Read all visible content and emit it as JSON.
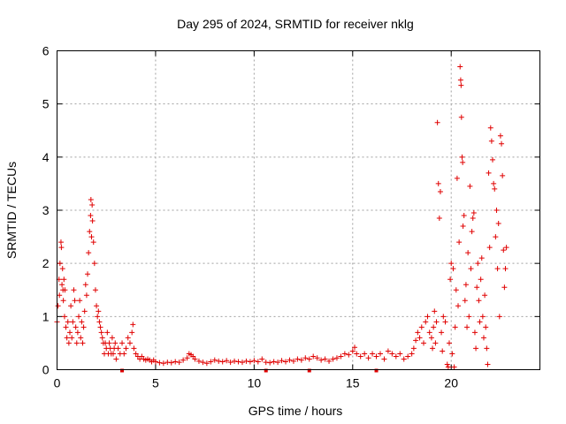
{
  "chart_data": {
    "type": "scatter",
    "title": "Day 295 of 2024, SRMTID for receiver nklg",
    "xlabel": "GPS time / hours",
    "ylabel": "SRMTID / TECUs",
    "xlim": [
      0,
      24.5
    ],
    "ylim": [
      0,
      6
    ],
    "xticks": [
      0,
      5,
      10,
      15,
      20
    ],
    "yticks": [
      0,
      1,
      2,
      3,
      4,
      5,
      6
    ],
    "grid": true,
    "marker": "+",
    "series": [
      {
        "name": "SRMTID",
        "color": "#e00000",
        "points": [
          [
            0.0,
            0.9
          ],
          [
            0.05,
            1.2
          ],
          [
            0.1,
            1.7
          ],
          [
            0.12,
            1.4
          ],
          [
            0.15,
            2.0
          ],
          [
            0.2,
            2.4
          ],
          [
            0.22,
            2.3
          ],
          [
            0.25,
            1.6
          ],
          [
            0.28,
            1.9
          ],
          [
            0.3,
            1.5
          ],
          [
            0.32,
            1.3
          ],
          [
            0.35,
            1.7
          ],
          [
            0.38,
            1.0
          ],
          [
            0.4,
            1.5
          ],
          [
            0.45,
            0.8
          ],
          [
            0.5,
            0.6
          ],
          [
            0.55,
            0.9
          ],
          [
            0.6,
            0.5
          ],
          [
            0.65,
            0.7
          ],
          [
            0.7,
            1.2
          ],
          [
            0.75,
            0.6
          ],
          [
            0.8,
            0.9
          ],
          [
            0.85,
            1.5
          ],
          [
            0.9,
            1.3
          ],
          [
            0.95,
            0.8
          ],
          [
            1.0,
            0.5
          ],
          [
            1.05,
            0.7
          ],
          [
            1.1,
            1.0
          ],
          [
            1.15,
            1.3
          ],
          [
            1.2,
            0.6
          ],
          [
            1.25,
            0.9
          ],
          [
            1.3,
            0.5
          ],
          [
            1.35,
            0.8
          ],
          [
            1.4,
            1.1
          ],
          [
            1.45,
            1.6
          ],
          [
            1.5,
            1.4
          ],
          [
            1.55,
            1.8
          ],
          [
            1.6,
            2.2
          ],
          [
            1.65,
            2.6
          ],
          [
            1.7,
            2.9
          ],
          [
            1.72,
            3.2
          ],
          [
            1.75,
            2.5
          ],
          [
            1.78,
            3.1
          ],
          [
            1.8,
            2.8
          ],
          [
            1.85,
            2.4
          ],
          [
            1.9,
            2.0
          ],
          [
            1.95,
            1.5
          ],
          [
            2.0,
            1.2
          ],
          [
            2.05,
            1.0
          ],
          [
            2.1,
            1.1
          ],
          [
            2.15,
            0.9
          ],
          [
            2.2,
            0.8
          ],
          [
            2.25,
            0.7
          ],
          [
            2.3,
            0.6
          ],
          [
            2.35,
            0.5
          ],
          [
            2.4,
            0.3
          ],
          [
            2.45,
            0.5
          ],
          [
            2.5,
            0.4
          ],
          [
            2.55,
            0.7
          ],
          [
            2.6,
            0.3
          ],
          [
            2.65,
            0.5
          ],
          [
            2.7,
            0.4
          ],
          [
            2.75,
            0.3
          ],
          [
            2.8,
            0.6
          ],
          [
            2.85,
            0.3
          ],
          [
            2.9,
            0.4
          ],
          [
            2.95,
            0.5
          ],
          [
            3.0,
            0.2
          ],
          [
            3.1,
            0.4
          ],
          [
            3.2,
            0.3
          ],
          [
            3.3,
            0.5
          ],
          [
            3.4,
            0.3
          ],
          [
            3.5,
            0.4
          ],
          [
            3.6,
            0.6
          ],
          [
            3.7,
            0.5
          ],
          [
            3.8,
            0.7
          ],
          [
            3.85,
            0.85
          ],
          [
            3.9,
            0.4
          ],
          [
            4.0,
            0.3
          ],
          [
            4.1,
            0.25
          ],
          [
            4.2,
            0.2
          ],
          [
            4.3,
            0.25
          ],
          [
            4.4,
            0.2
          ],
          [
            4.5,
            0.18
          ],
          [
            4.6,
            0.2
          ],
          [
            4.7,
            0.18
          ],
          [
            4.8,
            0.15
          ],
          [
            4.9,
            0.18
          ],
          [
            5.0,
            0.15
          ],
          [
            5.2,
            0.13
          ],
          [
            5.4,
            0.12
          ],
          [
            5.6,
            0.14
          ],
          [
            5.8,
            0.13
          ],
          [
            6.0,
            0.15
          ],
          [
            6.2,
            0.14
          ],
          [
            6.4,
            0.18
          ],
          [
            6.6,
            0.22
          ],
          [
            6.7,
            0.3
          ],
          [
            6.8,
            0.28
          ],
          [
            6.9,
            0.25
          ],
          [
            7.0,
            0.2
          ],
          [
            7.2,
            0.16
          ],
          [
            7.4,
            0.14
          ],
          [
            7.6,
            0.12
          ],
          [
            7.8,
            0.15
          ],
          [
            8.0,
            0.18
          ],
          [
            8.2,
            0.16
          ],
          [
            8.4,
            0.15
          ],
          [
            8.6,
            0.17
          ],
          [
            8.8,
            0.14
          ],
          [
            9.0,
            0.16
          ],
          [
            9.2,
            0.15
          ],
          [
            9.4,
            0.14
          ],
          [
            9.6,
            0.16
          ],
          [
            9.8,
            0.15
          ],
          [
            10.0,
            0.17
          ],
          [
            10.2,
            0.15
          ],
          [
            10.4,
            0.2
          ],
          [
            10.6,
            0.14
          ],
          [
            10.8,
            0.13
          ],
          [
            11.0,
            0.15
          ],
          [
            11.2,
            0.14
          ],
          [
            11.4,
            0.17
          ],
          [
            11.6,
            0.15
          ],
          [
            11.8,
            0.18
          ],
          [
            12.0,
            0.16
          ],
          [
            12.2,
            0.2
          ],
          [
            12.4,
            0.18
          ],
          [
            12.6,
            0.22
          ],
          [
            12.8,
            0.2
          ],
          [
            13.0,
            0.25
          ],
          [
            13.2,
            0.22
          ],
          [
            13.4,
            0.18
          ],
          [
            13.6,
            0.2
          ],
          [
            13.8,
            0.16
          ],
          [
            14.0,
            0.2
          ],
          [
            14.2,
            0.22
          ],
          [
            14.4,
            0.25
          ],
          [
            14.6,
            0.3
          ],
          [
            14.8,
            0.28
          ],
          [
            15.0,
            0.35
          ],
          [
            15.1,
            0.42
          ],
          [
            15.2,
            0.3
          ],
          [
            15.4,
            0.25
          ],
          [
            15.6,
            0.3
          ],
          [
            15.8,
            0.22
          ],
          [
            16.0,
            0.3
          ],
          [
            16.2,
            0.25
          ],
          [
            16.4,
            0.3
          ],
          [
            16.6,
            0.2
          ],
          [
            16.8,
            0.35
          ],
          [
            17.0,
            0.3
          ],
          [
            17.2,
            0.25
          ],
          [
            17.4,
            0.3
          ],
          [
            17.6,
            0.2
          ],
          [
            17.8,
            0.25
          ],
          [
            18.0,
            0.3
          ],
          [
            18.1,
            0.4
          ],
          [
            18.2,
            0.55
          ],
          [
            18.3,
            0.7
          ],
          [
            18.4,
            0.6
          ],
          [
            18.5,
            0.8
          ],
          [
            18.6,
            0.5
          ],
          [
            18.7,
            0.9
          ],
          [
            18.8,
            1.0
          ],
          [
            18.9,
            0.7
          ],
          [
            19.0,
            0.6
          ],
          [
            19.05,
            0.4
          ],
          [
            19.1,
            0.8
          ],
          [
            19.15,
            1.1
          ],
          [
            19.2,
            0.5
          ],
          [
            19.25,
            0.9
          ],
          [
            19.3,
            4.65
          ],
          [
            19.35,
            3.5
          ],
          [
            19.4,
            2.85
          ],
          [
            19.45,
            3.35
          ],
          [
            19.5,
            0.7
          ],
          [
            19.55,
            0.35
          ],
          [
            19.6,
            1.0
          ],
          [
            19.7,
            0.9
          ],
          [
            19.8,
            0.1
          ],
          [
            19.85,
            0.05
          ],
          [
            19.9,
            0.5
          ],
          [
            19.95,
            1.7
          ],
          [
            20.0,
            2.0
          ],
          [
            20.05,
            0.3
          ],
          [
            20.1,
            1.9
          ],
          [
            20.15,
            0.05
          ],
          [
            20.2,
            0.8
          ],
          [
            20.25,
            1.5
          ],
          [
            20.3,
            3.6
          ],
          [
            20.35,
            1.2
          ],
          [
            20.4,
            2.4
          ],
          [
            20.45,
            5.7
          ],
          [
            20.48,
            5.45
          ],
          [
            20.5,
            5.35
          ],
          [
            20.52,
            4.75
          ],
          [
            20.55,
            4.0
          ],
          [
            20.58,
            3.9
          ],
          [
            20.6,
            2.7
          ],
          [
            20.65,
            2.9
          ],
          [
            20.7,
            1.3
          ],
          [
            20.75,
            1.6
          ],
          [
            20.8,
            0.8
          ],
          [
            20.85,
            2.2
          ],
          [
            20.9,
            1.0
          ],
          [
            20.95,
            3.45
          ],
          [
            21.0,
            1.9
          ],
          [
            21.05,
            2.6
          ],
          [
            21.1,
            2.85
          ],
          [
            21.15,
            2.95
          ],
          [
            21.2,
            0.7
          ],
          [
            21.25,
            0.4
          ],
          [
            21.3,
            1.55
          ],
          [
            21.35,
            2.0
          ],
          [
            21.4,
            1.3
          ],
          [
            21.45,
            0.9
          ],
          [
            21.5,
            1.7
          ],
          [
            21.55,
            2.1
          ],
          [
            21.6,
            1.0
          ],
          [
            21.65,
            0.6
          ],
          [
            21.7,
            1.4
          ],
          [
            21.75,
            0.8
          ],
          [
            21.8,
            0.4
          ],
          [
            21.85,
            0.1
          ],
          [
            21.9,
            3.7
          ],
          [
            21.95,
            2.3
          ],
          [
            22.0,
            4.55
          ],
          [
            22.05,
            4.3
          ],
          [
            22.1,
            3.95
          ],
          [
            22.15,
            3.5
          ],
          [
            22.2,
            3.4
          ],
          [
            22.25,
            2.5
          ],
          [
            22.3,
            3.0
          ],
          [
            22.35,
            1.9
          ],
          [
            22.4,
            2.75
          ],
          [
            22.45,
            1.0
          ],
          [
            22.5,
            4.4
          ],
          [
            22.55,
            4.25
          ],
          [
            22.6,
            3.65
          ],
          [
            22.65,
            2.25
          ],
          [
            22.7,
            1.55
          ],
          [
            22.75,
            1.9
          ],
          [
            22.8,
            2.3
          ]
        ]
      }
    ],
    "bottom_markers_x": [
      3.3,
      10.6,
      12.8,
      16.2
    ]
  }
}
